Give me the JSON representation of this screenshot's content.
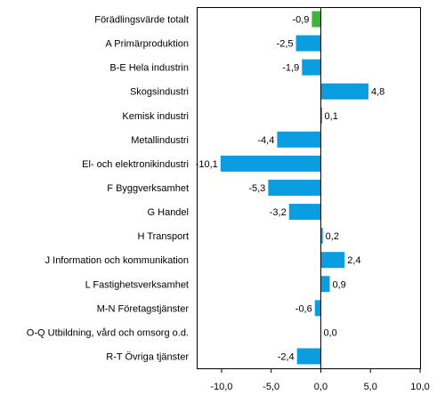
{
  "chart_data": {
    "type": "bar",
    "orientation": "horizontal",
    "title": "",
    "xlabel": "",
    "ylabel": "",
    "xlim": [
      -12.5,
      10
    ],
    "xticks": [
      -10,
      -5,
      0,
      5,
      10
    ],
    "xtick_labels": [
      "-10,0",
      "-5,0",
      "0,0",
      "5,0",
      "10,0"
    ],
    "grid": false,
    "legend": "none",
    "highlight_color": "#3cb43c",
    "bar_color": "#0a9ee0",
    "categories": [
      "Förädlingsvärde totalt",
      "A Primärproduktion",
      "B-E Hela industrin",
      "Skogsindustri",
      "Kemisk industri",
      "Metallindustri",
      "El- och elektronikindustri",
      "F Byggverksamhet",
      "G Handel",
      "H Transport",
      "J Information och kommunikation",
      "L Fastighetsverksamhet",
      "M-N Företagstjänster",
      "O-Q Utbildning, vård och omsorg o.d.",
      "R-T Övriga tjänster"
    ],
    "values": [
      -0.9,
      -2.5,
      -1.9,
      4.8,
      0.1,
      -4.4,
      -10.1,
      -5.3,
      -3.2,
      0.2,
      2.4,
      0.9,
      -0.6,
      0.0,
      -2.4
    ],
    "value_labels": [
      "-0,9",
      "-2,5",
      "-1,9",
      "4,8",
      "0,1",
      "-4,4",
      "-10,1",
      "-5,3",
      "-3,2",
      "0,2",
      "2,4",
      "0,9",
      "-0,6",
      "0,0",
      "-2,4"
    ],
    "highlight_index": 0
  }
}
